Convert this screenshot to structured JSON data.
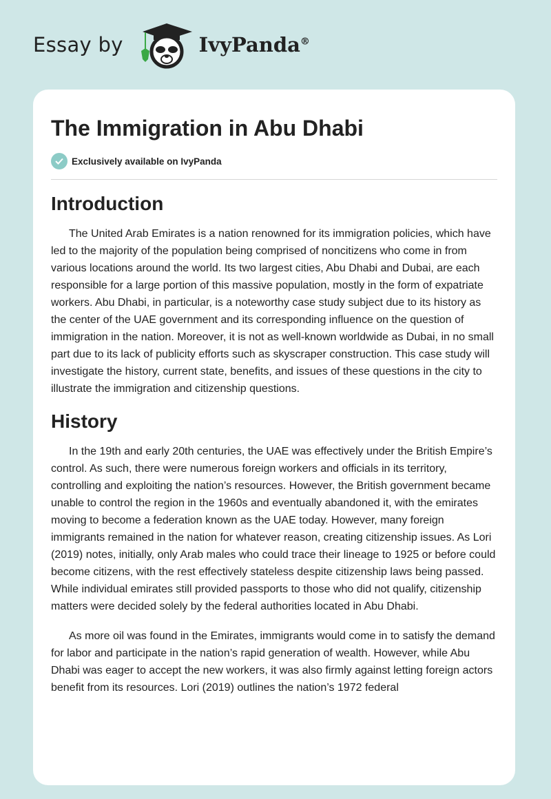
{
  "header": {
    "prefix": "Essay by",
    "brand": "IvyPanda",
    "registered": "®",
    "logo_icon": "panda-graduate-logo"
  },
  "article": {
    "title": "The Immigration in Abu Dhabi",
    "badge": {
      "icon": "check-circle-icon",
      "text": "Exclusively available on IvyPanda",
      "color": "#8ccbc6"
    },
    "sections": [
      {
        "heading": "Introduction",
        "paragraphs": [
          "The United Arab Emirates is a nation renowned for its immigration policies, which have led to the majority of the population being comprised of noncitizens who come in from various locations around the world. Its two largest cities, Abu Dhabi and Dubai, are each responsible for a large portion of this massive population, mostly in the form of expatriate workers. Abu Dhabi, in particular, is a noteworthy case study subject due to its history as the center of the UAE government and its corresponding influence on the question of immigration in the nation. Moreover, it is not as well-known worldwide as Dubai, in no small part due to its lack of publicity efforts such as skyscraper construction. This case study will investigate the history, current state, benefits, and issues of these questions in the city to illustrate the immigration and citizenship questions."
        ]
      },
      {
        "heading": "History",
        "paragraphs": [
          "In the 19th and early 20th centuries, the UAE was effectively under the British Empire’s control. As such, there were numerous foreign workers and officials in its territory, controlling and exploiting the nation’s resources. However, the British government became unable to control the region in the 1960s and eventually abandoned it, with the emirates moving to become a federation known as the UAE today. However, many foreign immigrants remained in the nation for whatever reason, creating citizenship issues. As Lori (2019) notes, initially, only Arab males who could trace their lineage to 1925 or before could become citizens, with the rest effectively stateless despite citizenship laws being passed. While individual emirates still provided passports to those who did not qualify, citizenship matters were decided solely by the federal authorities located in Abu Dhabi.",
          "As more oil was found in the Emirates, immigrants would come in to satisfy the demand for labor and participate in the nation’s rapid generation of wealth. However, while Abu Dhabi was eager to accept the new workers, it was also firmly against letting foreign actors benefit from its resources. Lori (2019) outlines the nation’s 1972 federal"
        ]
      }
    ]
  },
  "colors": {
    "background": "#cfe7e7",
    "card": "#ffffff",
    "accent_leaf": "#3aa845"
  }
}
